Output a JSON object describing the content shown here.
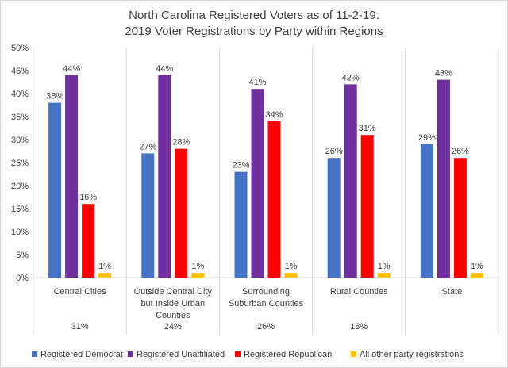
{
  "chart_data": {
    "type": "bar",
    "title": [
      "North Carolina Registered Voters as of 11-2-19:",
      "2019 Voter Registrations by Party within Regions"
    ],
    "categories": [
      [
        "Central Cities"
      ],
      [
        "Outside Central City",
        "but Inside Urban",
        "Counties"
      ],
      [
        "Surrounding",
        "Suburban Counties"
      ],
      [
        "Rural Counties"
      ],
      [
        "State"
      ]
    ],
    "category_shares": [
      "31%",
      "24%",
      "26%",
      "18%",
      ""
    ],
    "series": [
      {
        "name": "Registered Democrat",
        "color": "#4472c4",
        "values": [
          38,
          27,
          23,
          26,
          29
        ],
        "labels": [
          "38%",
          "27%",
          "23%",
          "26%",
          "29%"
        ]
      },
      {
        "name": "Registered Unaffiliated",
        "color": "#7030a0",
        "values": [
          44,
          44,
          41,
          42,
          43
        ],
        "labels": [
          "44%",
          "44%",
          "41%",
          "42%",
          "43%"
        ]
      },
      {
        "name": "Registered Republican",
        "color": "#ff0000",
        "values": [
          16,
          28,
          34,
          31,
          26
        ],
        "labels": [
          "16%",
          "28%",
          "34%",
          "31%",
          "26%"
        ]
      },
      {
        "name": "All other party registrations",
        "color": "#ffc000",
        "values": [
          1,
          1,
          1,
          1,
          1
        ],
        "labels": [
          "1%",
          "1%",
          "1%",
          "1%",
          "1%"
        ]
      }
    ],
    "ylim": [
      0,
      50
    ],
    "yticks": [
      "0%",
      "5%",
      "10%",
      "15%",
      "20%",
      "25%",
      "30%",
      "35%",
      "40%",
      "45%",
      "50%"
    ],
    "grid": "vertical category separators only",
    "legend_position": "bottom"
  }
}
